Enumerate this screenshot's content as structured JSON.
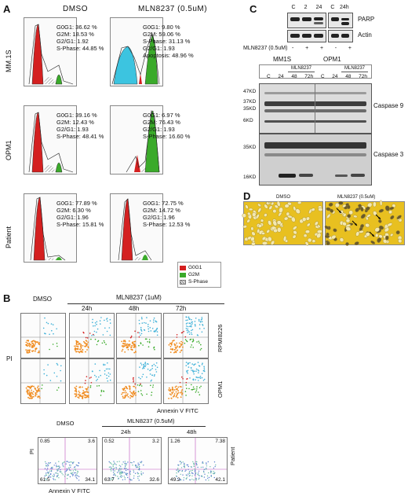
{
  "panels": {
    "A": {
      "letter": "A",
      "col_headers": [
        "DMSO",
        "MLN8237 (0.5uM)"
      ],
      "rows": [
        {
          "label": "MM.1S",
          "dmso": [
            "G0G1: 36.62 %",
            "G2M: 18.53 %",
            "G2/G1: 1.92",
            "S-Phase: 44.85 %"
          ],
          "mln": [
            "G0G1: 9.80 %",
            "G2M: 59.06 %",
            "S-Phase: 31.13 %",
            "G2/G1: 1.93",
            "Apoptosis: 48.96 %"
          ]
        },
        {
          "label": "OPM1",
          "dmso": [
            "G0G1: 39.16 %",
            "G2M: 12.43 %",
            "G2/G1: 1.93",
            "S-Phase: 48.41 %"
          ],
          "mln": [
            "G0G1: 6.97 %",
            "G2M: 76.43 %",
            "G2/G1: 1.93",
            "S-Phase: 16.60 %"
          ]
        },
        {
          "label": "Patient",
          "dmso": [
            "G0G1: 77.89 %",
            "G2M: 6.30 %",
            "G2/G1: 1.96",
            "S-Phase: 15.81 %"
          ],
          "mln": [
            "G0G1: 72.75 %",
            "G2M: 14.72 %",
            "G2/G1: 1.96",
            "S-Phase: 12.53 %"
          ]
        }
      ],
      "legend": [
        {
          "label": "G0G1",
          "color": "#d42020"
        },
        {
          "label": "G2M",
          "color": "#3aaa2a"
        },
        {
          "label": "S-Phase",
          "color": "#ffffff"
        }
      ],
      "colors": {
        "g0g1": "#d42020",
        "g2m": "#3aaa2a",
        "apoptosis": "#3cc4e0"
      }
    },
    "B": {
      "letter": "B",
      "treatment_top": "MLN8237 (1uM)",
      "col_headers_top": [
        "DMSO",
        "24h",
        "48h",
        "72h"
      ],
      "row_labels_top": [
        "RPMI8226",
        "OPM1"
      ],
      "y_label": "PI",
      "x_label": "Annexin V FITC",
      "treatment_bottom": "MLN8237 (0.5uM)",
      "col_headers_bottom": [
        "DMSO",
        "24h",
        "48h"
      ],
      "row_label_bottom": "Patient",
      "quadrants_bottom": [
        {
          "ul": "0.85",
          "ur": "3.6",
          "ll": "61.5",
          "lr": "34.1"
        },
        {
          "ul": "0.52",
          "ur": "3.2",
          "ll": "63.7",
          "lr": "32.6"
        },
        {
          "ul": "1.26",
          "ur": "7.38",
          "ll": "49.2",
          "lr": "42.1"
        }
      ],
      "y_label_bottom": "PI",
      "x_label_bottom": "Annexin V FITC"
    },
    "C": {
      "letter": "C",
      "top_lanes_1": [
        "C",
        "2",
        "24"
      ],
      "top_lanes_2": [
        "C",
        "24h"
      ],
      "parp_label": "PARP",
      "actin_label": "Actin",
      "treatment_label": "MLN8237 (0.5uM)",
      "treatment_signs": [
        "-",
        "+",
        "+",
        "-",
        "+"
      ],
      "cell_lines": [
        "MM1S",
        "OPM1"
      ],
      "sub_treatment": [
        "MLN8237",
        "MLN8237"
      ],
      "lanes": [
        "C",
        "24",
        "48",
        "72h",
        "C",
        "24",
        "48",
        "72h"
      ],
      "mw_casp9": [
        "47KD",
        "37KD",
        "35KD",
        "6KD"
      ],
      "mw_casp3": [
        "35KD",
        "16KD"
      ],
      "casp9_label": "Caspase 9",
      "casp3_label": "Caspase 3"
    },
    "D": {
      "letter": "D",
      "headers": [
        "DMSO",
        "MLN8237 (0.5uM)"
      ],
      "bg_color": "#e8c020"
    }
  }
}
